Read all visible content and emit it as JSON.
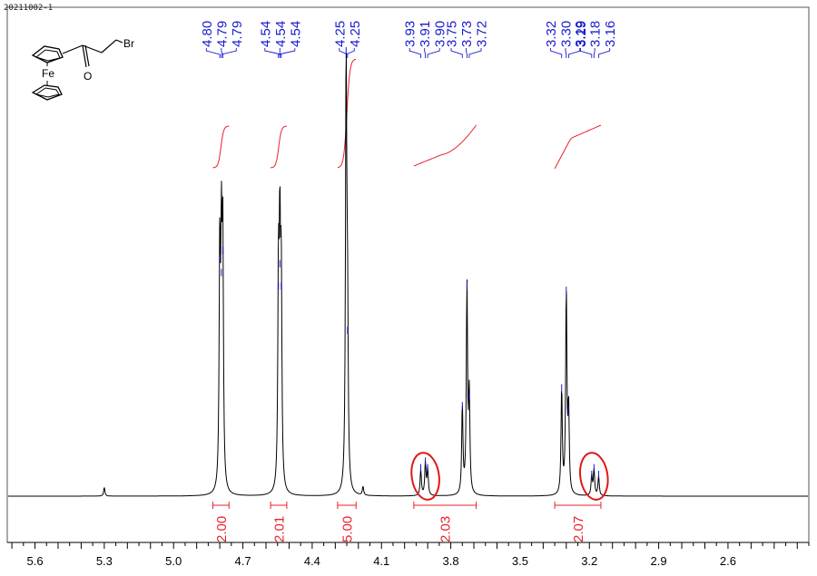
{
  "sample_id": "20211002-1",
  "structure": {
    "atoms": [
      "Br",
      "Fe",
      "O"
    ],
    "atom_names": [
      "bromine",
      "iron",
      "oxygen"
    ]
  },
  "chart_data": {
    "type": "line",
    "title": "",
    "xlabel": "",
    "ylabel": "",
    "x_reversed": true,
    "xlim": [
      5.72,
      2.25
    ],
    "x_ticks": [
      {
        "v": 5.6,
        "label": "5.6"
      },
      {
        "v": 5.3,
        "label": "5.3"
      },
      {
        "v": 5.0,
        "label": "5.0"
      },
      {
        "v": 4.7,
        "label": "4.7"
      },
      {
        "v": 4.4,
        "label": "4.4"
      },
      {
        "v": 4.1,
        "label": "4.1"
      },
      {
        "v": 3.8,
        "label": "3.8"
      },
      {
        "v": 3.5,
        "label": "3.5"
      },
      {
        "v": 3.2,
        "label": "3.2"
      },
      {
        "v": 2.9,
        "label": "2.9"
      },
      {
        "v": 2.6,
        "label": "2.6"
      }
    ],
    "peaks": [
      {
        "ppm": 4.8,
        "label": "4.80",
        "height": 0.53
      },
      {
        "ppm": 4.79,
        "label": "4.79",
        "height": 0.55
      },
      {
        "ppm": 4.79,
        "label": "4.79",
        "height": 0.5
      },
      {
        "ppm": 4.54,
        "label": "4.54",
        "height": 0.47
      },
      {
        "ppm": 4.54,
        "label": "4.54",
        "height": 0.52
      },
      {
        "ppm": 4.54,
        "label": "4.54",
        "height": 0.47
      },
      {
        "ppm": 4.25,
        "label": "4.25",
        "height": 0.37
      },
      {
        "ppm": 4.25,
        "label": "4.25",
        "height": 1.0
      },
      {
        "ppm": 3.93,
        "label": "3.93",
        "height": 0.06
      },
      {
        "ppm": 3.91,
        "label": "3.91",
        "height": 0.075
      },
      {
        "ppm": 3.9,
        "label": "3.90",
        "height": 0.06
      },
      {
        "ppm": 3.75,
        "label": "3.75",
        "height": 0.2
      },
      {
        "ppm": 3.73,
        "label": "3.73",
        "height": 0.47
      },
      {
        "ppm": 3.72,
        "label": "3.72",
        "height": 0.22
      },
      {
        "ppm": 3.32,
        "label": "3.32",
        "height": 0.24
      },
      {
        "ppm": 3.3,
        "label": "3.30",
        "height": 0.46
      },
      {
        "ppm": 3.29,
        "label": "3.29",
        "height": 0.19
      },
      {
        "ppm": 3.19,
        "label": "3.19",
        "height": 0.045
      },
      {
        "ppm": 3.18,
        "label": "3.18",
        "height": 0.06
      },
      {
        "ppm": 3.16,
        "label": "3.16",
        "height": 0.045
      }
    ],
    "minor_peaks": [
      {
        "ppm": 5.3,
        "height": 0.02
      },
      {
        "ppm": 4.18,
        "height": 0.02
      }
    ],
    "integrals": [
      {
        "from": 4.83,
        "to": 4.76,
        "value": "2.00"
      },
      {
        "from": 4.58,
        "to": 4.51,
        "value": "2.01"
      },
      {
        "from": 4.29,
        "to": 4.21,
        "value": "5.00"
      },
      {
        "from": 3.96,
        "to": 3.69,
        "value": "2.03"
      },
      {
        "from": 3.35,
        "to": 3.15,
        "value": "2.07"
      }
    ],
    "highlighted_multiplets_ppm": [
      3.91,
      3.18
    ],
    "colors": {
      "spectrum": "#000000",
      "peak_labels": "#1a1ad0",
      "integral": "#e8222a",
      "highlight": "#e01818"
    }
  }
}
